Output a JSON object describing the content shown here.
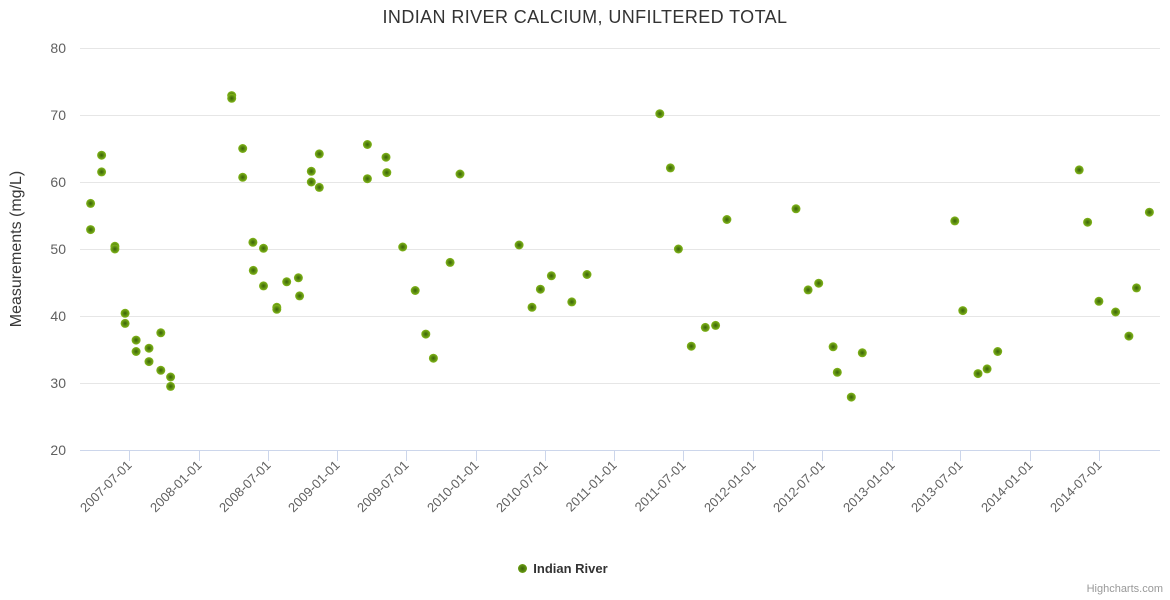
{
  "credit": "Highcharts.com",
  "colors": {
    "marker_core": "#3a6109",
    "marker_mid": "#5f9110",
    "marker_outer": "#84b71c",
    "grid": "#e6e6e6",
    "axis": "#ccd6eb",
    "tick_label": "#606060",
    "title_text": "#333333"
  },
  "chart_data": {
    "type": "scatter",
    "title": "INDIAN RIVER CALCIUM, UNFILTERED TOTAL",
    "xlabel": "",
    "ylabel": "Measurements (mg/L)",
    "ylim": [
      20,
      80
    ],
    "y_ticks": [
      80,
      70,
      60,
      50,
      40,
      30,
      20
    ],
    "x_range": [
      "2007-02-22",
      "2014-12-10"
    ],
    "x_ticks": [
      "2007-07-01",
      "2008-01-01",
      "2008-07-01",
      "2009-01-01",
      "2009-07-01",
      "2010-01-01",
      "2010-07-01",
      "2011-01-01",
      "2011-07-01",
      "2012-01-01",
      "2012-07-01",
      "2013-01-01",
      "2013-07-01",
      "2014-01-01",
      "2014-07-01"
    ],
    "x_tick_rotation": -45,
    "grid": "horizontal",
    "legend_position": "bottom-center",
    "marker_radius": 4.5,
    "series": [
      {
        "name": "Indian River",
        "color": "#7cb00e",
        "points": [
          [
            "2007-03-22",
            56.8
          ],
          [
            "2007-03-22",
            52.9
          ],
          [
            "2007-04-20",
            64.0
          ],
          [
            "2007-04-20",
            61.5
          ],
          [
            "2007-05-25",
            50.4
          ],
          [
            "2007-05-25",
            50.0
          ],
          [
            "2007-06-21",
            40.4
          ],
          [
            "2007-06-21",
            38.9
          ],
          [
            "2007-07-20",
            36.4
          ],
          [
            "2007-07-20",
            34.7
          ],
          [
            "2007-08-23",
            35.2
          ],
          [
            "2007-08-23",
            33.2
          ],
          [
            "2007-09-23",
            37.5
          ],
          [
            "2007-09-23",
            31.9
          ],
          [
            "2007-10-19",
            30.9
          ],
          [
            "2007-10-19",
            29.5
          ],
          [
            "2008-03-28",
            72.9
          ],
          [
            "2008-03-28",
            72.5
          ],
          [
            "2008-04-26",
            65.0
          ],
          [
            "2008-04-26",
            60.7
          ],
          [
            "2008-05-23",
            51.0
          ],
          [
            "2008-05-24",
            46.8
          ],
          [
            "2008-06-20",
            50.1
          ],
          [
            "2008-06-20",
            44.5
          ],
          [
            "2008-07-25",
            41.3
          ],
          [
            "2008-07-25",
            41.0
          ],
          [
            "2008-08-20",
            45.1
          ],
          [
            "2008-09-20",
            45.7
          ],
          [
            "2008-09-23",
            43.0
          ],
          [
            "2008-10-24",
            61.6
          ],
          [
            "2008-10-24",
            60.0
          ],
          [
            "2008-11-14",
            64.2
          ],
          [
            "2008-11-14",
            59.2
          ],
          [
            "2009-03-21",
            65.6
          ],
          [
            "2009-03-21",
            60.5
          ],
          [
            "2009-05-09",
            63.7
          ],
          [
            "2009-05-11",
            61.4
          ],
          [
            "2009-06-22",
            50.3
          ],
          [
            "2009-07-25",
            43.8
          ],
          [
            "2009-08-22",
            37.3
          ],
          [
            "2009-09-11",
            33.7
          ],
          [
            "2009-10-25",
            48.0
          ],
          [
            "2009-11-20",
            61.2
          ],
          [
            "2010-04-25",
            50.6
          ],
          [
            "2010-05-29",
            41.3
          ],
          [
            "2010-06-20",
            44.0
          ],
          [
            "2010-07-19",
            46.0
          ],
          [
            "2010-09-11",
            42.1
          ],
          [
            "2010-10-21",
            46.2
          ],
          [
            "2011-05-01",
            70.2
          ],
          [
            "2011-05-29",
            62.1
          ],
          [
            "2011-06-19",
            50.0
          ],
          [
            "2011-07-23",
            35.5
          ],
          [
            "2011-08-29",
            38.3
          ],
          [
            "2011-09-25",
            38.6
          ],
          [
            "2011-10-25",
            54.4
          ],
          [
            "2012-04-24",
            56.0
          ],
          [
            "2012-05-26",
            43.9
          ],
          [
            "2012-06-23",
            44.9
          ],
          [
            "2012-07-31",
            35.4
          ],
          [
            "2012-08-11",
            31.6
          ],
          [
            "2012-09-17",
            27.9
          ],
          [
            "2012-10-16",
            34.5
          ],
          [
            "2013-06-17",
            54.2
          ],
          [
            "2013-07-08",
            40.8
          ],
          [
            "2013-08-17",
            31.4
          ],
          [
            "2013-09-10",
            32.1
          ],
          [
            "2013-10-08",
            34.7
          ],
          [
            "2014-05-11",
            61.8
          ],
          [
            "2014-06-02",
            54.0
          ],
          [
            "2014-07-02",
            42.2
          ],
          [
            "2014-08-15",
            40.6
          ],
          [
            "2014-09-19",
            37.0
          ],
          [
            "2014-10-09",
            44.2
          ],
          [
            "2014-11-12",
            55.5
          ]
        ]
      }
    ]
  }
}
